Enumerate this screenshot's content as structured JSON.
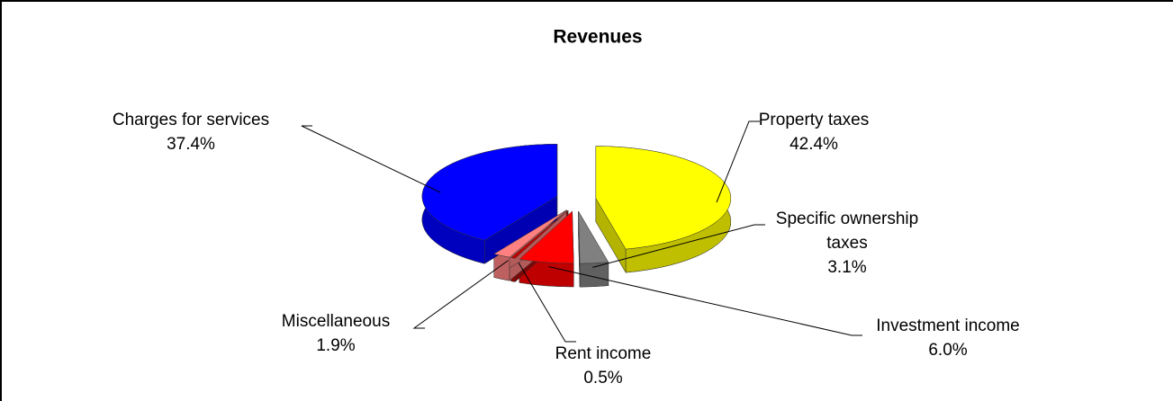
{
  "chart_data": {
    "type": "pie3d",
    "title": "Revenues",
    "categories": [
      "Property taxes",
      "Specific ownership taxes",
      "Investment income",
      "Rent income",
      "Miscellaneous",
      "Charges for services"
    ],
    "values": [
      42.4,
      3.1,
      6.0,
      0.5,
      1.9,
      37.4
    ],
    "value_labels": [
      "42.4%",
      "3.1%",
      "6.0%",
      "0.5%",
      "1.9%",
      "37.4%"
    ],
    "colors": [
      "#ffff00",
      "#808080",
      "#ff0000",
      "#c00000",
      "#ff8080",
      "#0000ff"
    ]
  }
}
